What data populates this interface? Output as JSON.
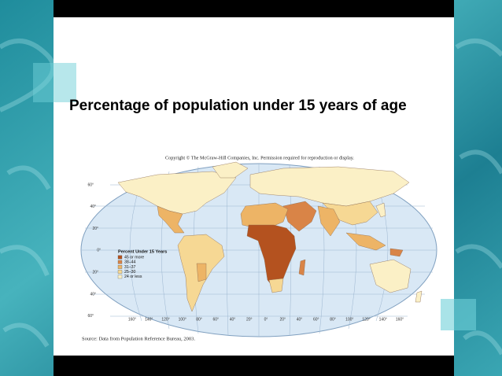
{
  "slide": {
    "title": "Percentage of population under 15 years of age",
    "copyright": "Copyright © The McGraw-Hill Companies, Inc.  Permission required for reproduction or display.",
    "source": "Source: Data from Population Reference Bureau, 2003.",
    "legend": {
      "title": "Percent Under 15 Years",
      "items": [
        {
          "label": "45 or more",
          "color": "#b4521f"
        },
        {
          "label": "38–44",
          "color": "#d98447"
        },
        {
          "label": "31–37",
          "color": "#edb466"
        },
        {
          "label": "25–30",
          "color": "#f6d894"
        },
        {
          "label": "24 or less",
          "color": "#fbf0c6"
        }
      ]
    },
    "latitude_labels": [
      "60°",
      "40°",
      "20°",
      "0°",
      "20°",
      "40°",
      "60°"
    ],
    "longitude_labels": [
      "160°",
      "140°",
      "120°",
      "100°",
      "80°",
      "60°",
      "40°",
      "20°",
      "0°",
      "20°",
      "40°",
      "60°",
      "80°",
      "100°",
      "120°",
      "140°",
      "160°"
    ]
  }
}
